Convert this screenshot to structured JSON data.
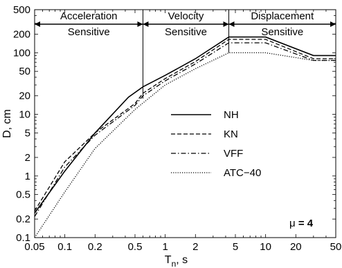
{
  "chart_data": {
    "type": "line",
    "xlabel": "T",
    "xlabel_sub": "n",
    "xlabel_unit": ", s",
    "ylabel": "D, cm",
    "xscale": "log",
    "yscale": "log",
    "xlim": [
      0.05,
      50
    ],
    "ylim": [
      0.1,
      500
    ],
    "x_ticks": [
      0.05,
      0.1,
      0.2,
      0.5,
      1,
      2,
      5,
      10,
      20,
      50
    ],
    "x_tick_labels": [
      "0.05",
      "0.1",
      "0.2",
      "0.5",
      "1",
      "2",
      "5",
      "10",
      "20",
      "50"
    ],
    "y_ticks": [
      0.1,
      0.2,
      0.5,
      1,
      2,
      5,
      10,
      20,
      50,
      100,
      200,
      500
    ],
    "y_tick_labels": [
      "0.1",
      "0.2",
      "0.5",
      "1",
      "2",
      "5",
      "10",
      "20",
      "50",
      "100",
      "200",
      "500"
    ],
    "grid": false,
    "legend_position": "center-right",
    "annotation_mu": {
      "symbol": "μ",
      "text": " = 4"
    },
    "regions": [
      {
        "label_line1": "Acceleration",
        "label_line2": "Sensitive",
        "x_start": 0.05,
        "x_end": 0.6
      },
      {
        "label_line1": "Velocity",
        "label_line2": "Sensitive",
        "x_start": 0.6,
        "x_end": 4.3
      },
      {
        "label_line1": "Displacement",
        "label_line2": "Sensitive",
        "x_start": 4.3,
        "x_end": 50
      }
    ],
    "region_dividers": [
      {
        "x": 0.6,
        "y_bottom": 18
      },
      {
        "x": 4.3,
        "y_bottom": 100
      }
    ],
    "series": [
      {
        "name": "NH",
        "style": "solid",
        "color": "#000000",
        "x": [
          0.05,
          0.1,
          0.2,
          0.43,
          0.6,
          1.0,
          2.0,
          4.3,
          10,
          30,
          50
        ],
        "y": [
          0.25,
          1.2,
          5.0,
          19,
          28,
          43,
          80,
          180,
          180,
          90,
          90
        ]
      },
      {
        "name": "KN",
        "style": "dashed",
        "color": "#000000",
        "x": [
          0.05,
          0.1,
          0.2,
          0.5,
          0.6,
          1.0,
          2.0,
          4.3,
          10,
          30,
          50
        ],
        "y": [
          0.27,
          1.7,
          5.0,
          15,
          22,
          38,
          72,
          165,
          165,
          80,
          80
        ]
      },
      {
        "name": "VFF",
        "style": "dashdot",
        "color": "#000000",
        "x": [
          0.05,
          0.1,
          0.2,
          0.5,
          0.6,
          1.0,
          2.0,
          4.3,
          10,
          30,
          50
        ],
        "y": [
          0.22,
          1.4,
          4.6,
          14,
          20,
          35,
          66,
          145,
          145,
          75,
          75
        ]
      },
      {
        "name": "ATC−40",
        "style": "dotted",
        "color": "#000000",
        "x": [
          0.05,
          0.1,
          0.2,
          0.5,
          1.0,
          2.0,
          4.3,
          10,
          30,
          50
        ],
        "y": [
          0.1,
          0.55,
          2.8,
          12,
          30,
          55,
          100,
          100,
          75,
          75
        ]
      }
    ]
  }
}
